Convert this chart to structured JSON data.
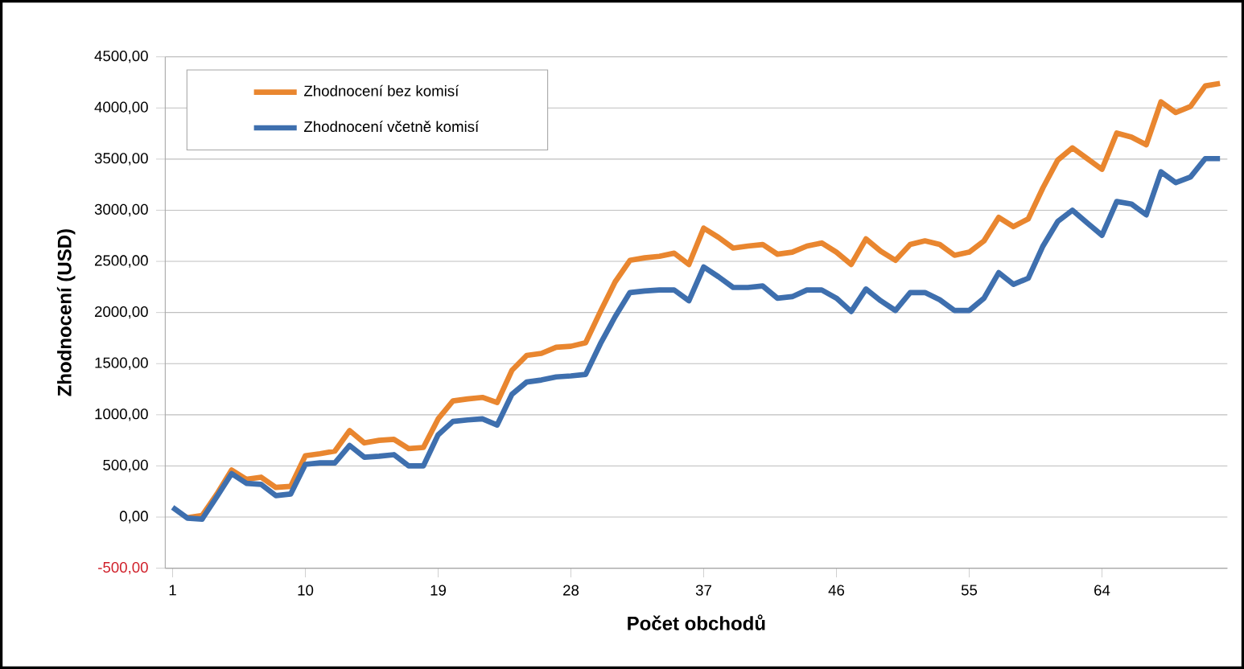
{
  "chart_data": {
    "type": "line",
    "xlabel": "Počet obchodů",
    "ylabel": "Zhodnocení (USD)",
    "categories": [
      "1",
      null,
      null,
      null,
      null,
      null,
      null,
      null,
      null,
      "10",
      null,
      null,
      null,
      null,
      null,
      null,
      null,
      null,
      "19",
      null,
      null,
      null,
      null,
      null,
      null,
      null,
      null,
      "28",
      null,
      null,
      null,
      null,
      null,
      null,
      null,
      null,
      "37",
      null,
      null,
      null,
      null,
      null,
      null,
      null,
      null,
      "46",
      null,
      null,
      null,
      null,
      null,
      null,
      null,
      null,
      "55",
      null,
      null,
      null,
      null,
      null,
      null,
      null,
      null,
      "64",
      null,
      null,
      null,
      null,
      null,
      null,
      null,
      null
    ],
    "series": [
      {
        "name": "Zhodnocení bez komisí",
        "color": "#e9862f",
        "values": [
          null,
          -5,
          15,
          225,
          460,
          370,
          390,
          290,
          300,
          600,
          620,
          645,
          845,
          725,
          750,
          760,
          670,
          680,
          960,
          1135,
          1155,
          1170,
          1120,
          1435,
          1580,
          1600,
          1660,
          1670,
          1705,
          2010,
          2300,
          2510,
          2535,
          2550,
          2580,
          2470,
          2825,
          2735,
          2630,
          2650,
          2665,
          2570,
          2590,
          2650,
          2680,
          2590,
          2470,
          2720,
          2600,
          2510,
          2665,
          2700,
          2665,
          2560,
          2590,
          2700,
          2930,
          2840,
          2915,
          3220,
          3490,
          3610,
          3505,
          3400,
          3755,
          3715,
          3640,
          4060,
          3955,
          4015,
          4215,
          4240
        ]
      },
      {
        "name": "Zhodnocení včetně komisí",
        "color": "#3e6fae",
        "values": [
          95,
          -10,
          -20,
          200,
          425,
          330,
          320,
          210,
          225,
          515,
          530,
          530,
          700,
          585,
          595,
          610,
          500,
          500,
          805,
          935,
          950,
          960,
          900,
          1200,
          1320,
          1340,
          1370,
          1380,
          1395,
          1695,
          1960,
          2195,
          2210,
          2220,
          2220,
          2115,
          2445,
          2350,
          2245,
          2245,
          2260,
          2140,
          2155,
          2220,
          2220,
          2140,
          2010,
          2230,
          2115,
          2020,
          2195,
          2195,
          2125,
          2020,
          2020,
          2140,
          2390,
          2275,
          2335,
          2650,
          2890,
          3000,
          2875,
          2755,
          3085,
          3060,
          2955,
          3375,
          3270,
          3325,
          3505,
          3505
        ]
      }
    ],
    "ylim": [
      -500,
      4500
    ],
    "yticks": [
      {
        "value": -500,
        "label": "-500,00"
      },
      {
        "value": 0,
        "label": "0,00"
      },
      {
        "value": 500,
        "label": "500,00"
      },
      {
        "value": 1000,
        "label": "1000,00"
      },
      {
        "value": 1500,
        "label": "1500,00"
      },
      {
        "value": 2000,
        "label": "2000,00"
      },
      {
        "value": 2500,
        "label": "2500,00"
      },
      {
        "value": 3000,
        "label": "3000,00"
      },
      {
        "value": 3500,
        "label": "3500,00"
      },
      {
        "value": 4000,
        "label": "4000,00"
      },
      {
        "value": 4500,
        "label": "4500,00"
      }
    ],
    "grid": "y",
    "legend": "top left",
    "marker": "none",
    "line_style": "solid"
  }
}
